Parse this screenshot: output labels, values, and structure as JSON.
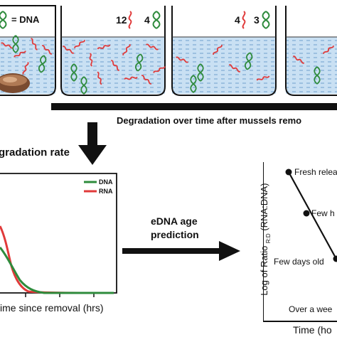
{
  "legend_top": {
    "dna_label": "= DNA"
  },
  "tanks": [
    {
      "rna_count": "",
      "dna_count": ""
    },
    {
      "rna_count": "12",
      "dna_count": "4"
    },
    {
      "rna_count": "4",
      "dna_count": "3"
    },
    {
      "rna_count": "",
      "dna_count": ""
    }
  ],
  "banner": {
    "text": "Degradation over time after mussels remo"
  },
  "rate_title": "gradation rate",
  "plot": {
    "legend": [
      {
        "name": "DNA",
        "color": "#2e8b3c"
      },
      {
        "name": "RNA",
        "color": "#e03a3a"
      }
    ],
    "xlabel": "ime since removal (hrs)"
  },
  "middle": {
    "line1": "eDNA age",
    "line2": "prediction"
  },
  "ratio_plot": {
    "ylabel": "Log of Ratio",
    "ylabel_sub": "R:D",
    "ylabel_tail": "(RNA:DNA)",
    "points": [
      {
        "label": "Fresh relea"
      },
      {
        "label": "Few h"
      },
      {
        "label": "Few days old"
      }
    ],
    "bottom_label": "Over a wee",
    "xlabel": "Time (ho"
  },
  "colors": {
    "rna": "#e03a3a",
    "dna": "#2e8b3c",
    "water": "#b9d7ef",
    "arrow": "#111111"
  }
}
